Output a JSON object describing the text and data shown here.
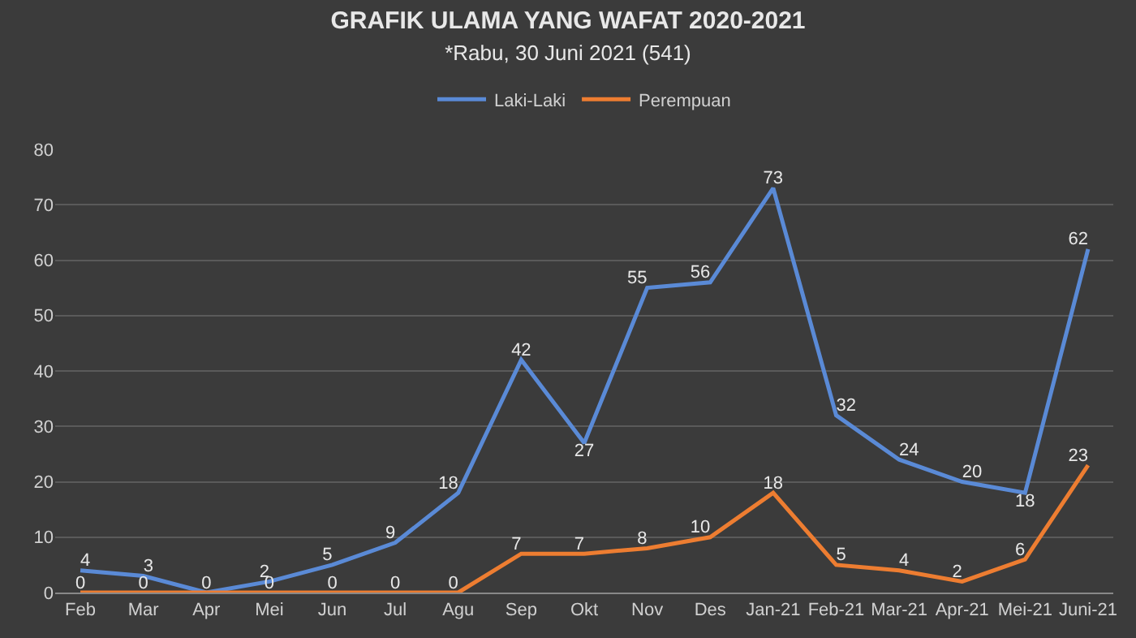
{
  "chart_data": {
    "type": "line",
    "title": "GRAFIK ULAMA YANG WAFAT 2020-2021",
    "subtitle": "*Rabu, 30 Juni 2021 (541)",
    "categories": [
      "Feb",
      "Mar",
      "Apr",
      "Mei",
      "Jun",
      "Jul",
      "Agu",
      "Sep",
      "Okt",
      "Nov",
      "Des",
      "Jan-21",
      "Feb-21",
      "Mar-21",
      "Apr-21",
      "Mei-21",
      "Juni-21"
    ],
    "series": [
      {
        "name": "Laki-Laki",
        "color": "#5a8ad6",
        "values": [
          4,
          3,
          0,
          2,
          5,
          9,
          18,
          42,
          27,
          55,
          56,
          73,
          32,
          24,
          20,
          18,
          62
        ],
        "value_labels": [
          "4",
          "3",
          null,
          "2",
          "5",
          "9",
          "18",
          "42",
          "27",
          "55",
          "56",
          "73",
          "32",
          "24",
          "20",
          "18",
          "62"
        ]
      },
      {
        "name": "Perempuan",
        "color": "#ed7d31",
        "values": [
          0,
          0,
          0,
          0,
          0,
          0,
          0,
          7,
          7,
          8,
          10,
          18,
          5,
          4,
          2,
          6,
          23
        ],
        "value_labels": [
          "0",
          "0",
          "0",
          "0",
          "0",
          "0",
          "0",
          "7",
          "7",
          "8",
          "10",
          "18",
          "5",
          "4",
          "2",
          "6",
          "23"
        ]
      }
    ],
    "ylim": [
      0,
      80
    ],
    "yticks": [
      0,
      10,
      20,
      30,
      40,
      50,
      60,
      70,
      80
    ],
    "grid": "y",
    "legend": "top",
    "marker": "none",
    "line_style": "solid"
  }
}
